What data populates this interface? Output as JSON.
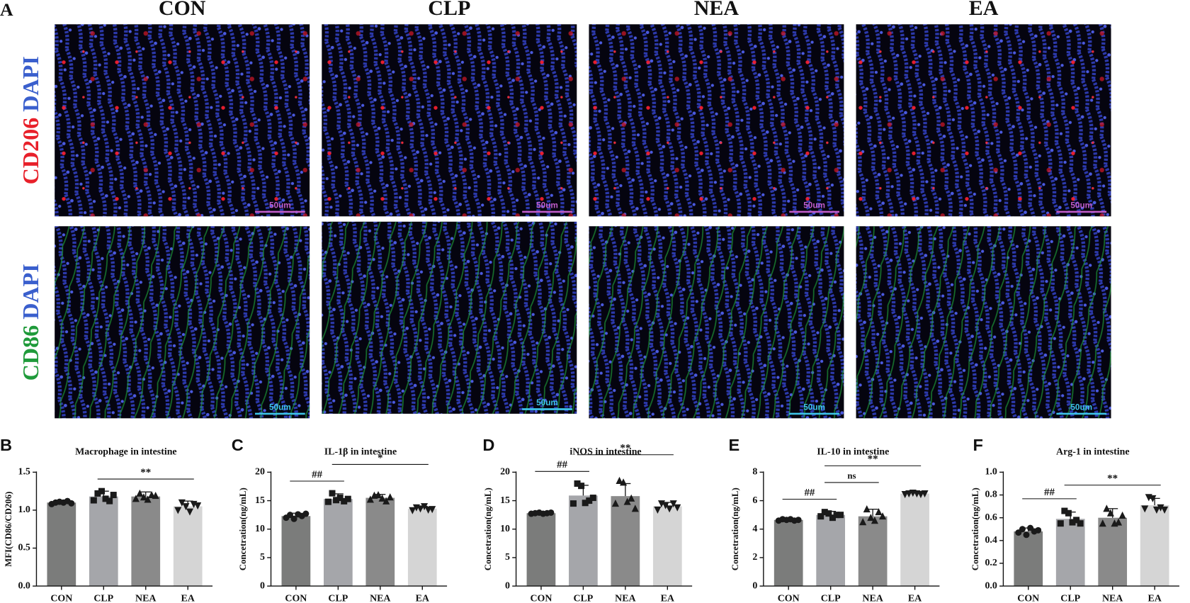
{
  "images": {
    "panel_label": "A",
    "columns": [
      "CON",
      "CLP",
      "NEA",
      "EA"
    ],
    "rows": [
      {
        "stain": "CD206",
        "stain_color": "#e8202a",
        "counterstain": "DAPI",
        "counterstain_color": "#3a5fcd",
        "scale_color": "#c05cc8"
      },
      {
        "stain": "CD86",
        "stain_color": "#1f9a3a",
        "counterstain": "DAPI",
        "counterstain_color": "#3a5fcd",
        "scale_color": "#3ec4e8"
      }
    ],
    "scale_bar": "50um"
  },
  "chart_data": [
    {
      "type": "bar",
      "panel_label": "B",
      "title": "Macrophage in intestine",
      "y_label": "MFI(CD86/CD206)",
      "categories": [
        "CON",
        "CLP",
        "NEA",
        "EA"
      ],
      "colors": [
        "#7b7c7b",
        "#a5a6aa",
        "#8a8a8a",
        "#d5d5d5"
      ],
      "markers": [
        "circle",
        "square",
        "triangle",
        "triangle-down"
      ],
      "values": [
        1.1,
        1.18,
        1.18,
        1.05
      ],
      "errors": [
        0.03,
        0.07,
        0.06,
        0.07
      ],
      "points": [
        [
          1.08,
          1.1,
          1.11,
          1.1,
          1.12,
          1.09
        ],
        [
          1.13,
          1.22,
          1.25,
          1.15,
          1.12,
          1.2
        ],
        [
          1.15,
          1.22,
          1.17,
          1.14,
          1.2,
          1.19
        ],
        [
          1.0,
          1.1,
          1.05,
          0.98,
          1.08,
          1.06
        ]
      ],
      "ylim": [
        0,
        1.5
      ],
      "yticks": [
        {
          "value": 0,
          "label": "0.0"
        },
        {
          "value": 0.5,
          "label": "0.5"
        },
        {
          "value": 1,
          "label": "1.0"
        },
        {
          "value": 1.5,
          "label": "1.5"
        }
      ],
      "annotations": [
        {
          "text": "**",
          "between": [
            "CLP",
            "EA"
          ]
        }
      ]
    },
    {
      "type": "bar",
      "panel_label": "C",
      "title": "IL-1β in intestine",
      "y_label": "Concetration(ng/mL)",
      "categories": [
        "CON",
        "CLP",
        "NEA",
        "EA"
      ],
      "colors": [
        "#7b7c7b",
        "#a5a6aa",
        "#8a8a8a",
        "#d5d5d5"
      ],
      "markers": [
        "circle",
        "square",
        "triangle",
        "triangle-down"
      ],
      "values": [
        12.3,
        15.3,
        15.5,
        13.6
      ],
      "errors": [
        0.5,
        0.9,
        0.6,
        0.4
      ],
      "points": [
        [
          12.0,
          12.5,
          11.8,
          12.6,
          12.3,
          12.7
        ],
        [
          14.8,
          16.3,
          15.1,
          15.5,
          14.9,
          15.3
        ],
        [
          15.2,
          15.9,
          16.0,
          15.4,
          14.9,
          15.6
        ],
        [
          13.3,
          13.8,
          13.6,
          14.0,
          13.4,
          13.5
        ]
      ],
      "ylim": [
        0,
        20
      ],
      "yticks": [
        0,
        5,
        10,
        15,
        20
      ],
      "annotations": [
        {
          "text": "##",
          "between": [
            "CON",
            "CLP"
          ]
        },
        {
          "text": "*",
          "between": [
            "CLP",
            "EA"
          ]
        }
      ]
    },
    {
      "type": "bar",
      "panel_label": "D",
      "title": "iNOS in intestine",
      "y_label": "Concetration(ng/mL)",
      "categories": [
        "CON",
        "CLP",
        "NEA",
        "EA"
      ],
      "colors": [
        "#7b7c7b",
        "#a5a6aa",
        "#8a8a8a",
        "#d5d5d5"
      ],
      "markers": [
        "circle",
        "square",
        "triangle",
        "triangle-down"
      ],
      "values": [
        12.8,
        15.9,
        15.8,
        14.0
      ],
      "errors": [
        0.15,
        1.8,
        2.2,
        0.7
      ],
      "points": [
        [
          12.7,
          12.8,
          12.9,
          12.7,
          12.8,
          12.9
        ],
        [
          14.5,
          18.0,
          17.6,
          14.6,
          15.0,
          15.5
        ],
        [
          14.5,
          18.5,
          18.2,
          14.8,
          15.4,
          13.6
        ],
        [
          13.4,
          14.5,
          14.2,
          13.6,
          14.5,
          13.8
        ]
      ],
      "ylim": [
        0,
        20
      ],
      "yticks": [
        0,
        5,
        10,
        15,
        20
      ],
      "annotations": [
        {
          "text": "##",
          "between": [
            "CON",
            "CLP"
          ]
        },
        {
          "text": "**",
          "between": [
            "CLP",
            "EA"
          ]
        }
      ]
    },
    {
      "type": "bar",
      "panel_label": "E",
      "title": "IL-10 in intestine",
      "y_label": "Concetration(ng/mL)",
      "categories": [
        "CON",
        "CLP",
        "NEA",
        "EA"
      ],
      "colors": [
        "#7b7c7b",
        "#a5a6aa",
        "#8a8a8a",
        "#d5d5d5"
      ],
      "markers": [
        "circle",
        "square",
        "triangle",
        "triangle-down"
      ],
      "values": [
        4.65,
        5.0,
        4.9,
        6.5
      ],
      "errors": [
        0.1,
        0.25,
        0.5,
        0.1
      ],
      "points": [
        [
          4.6,
          4.7,
          4.65,
          4.7,
          4.6,
          4.65
        ],
        [
          4.9,
          5.2,
          5.1,
          4.8,
          5.0,
          5.0
        ],
        [
          4.5,
          5.4,
          4.8,
          4.6,
          5.2,
          4.9
        ],
        [
          6.45,
          6.5,
          6.55,
          6.5,
          6.45,
          6.5
        ]
      ],
      "ylim": [
        0,
        8
      ],
      "yticks": [
        0,
        2,
        4,
        6,
        8
      ],
      "annotations": [
        {
          "text": "##",
          "between": [
            "CON",
            "CLP"
          ]
        },
        {
          "text": "ns",
          "between": [
            "CLP",
            "NEA"
          ]
        },
        {
          "text": "**",
          "between": [
            "CLP",
            "EA"
          ]
        }
      ]
    },
    {
      "type": "bar",
      "panel_label": "F",
      "title": "Arg-1 in intestine",
      "y_label": "Concetration(ng/mL)",
      "categories": [
        "CON",
        "CLP",
        "NEA",
        "EA"
      ],
      "colors": [
        "#7b7c7b",
        "#a5a6aa",
        "#8a8a8a",
        "#d5d5d5"
      ],
      "markers": [
        "circle",
        "square",
        "triangle",
        "triangle-down"
      ],
      "values": [
        0.48,
        0.59,
        0.6,
        0.71
      ],
      "errors": [
        0.03,
        0.06,
        0.08,
        0.06
      ],
      "points": [
        [
          0.47,
          0.5,
          0.45,
          0.51,
          0.48,
          0.49
        ],
        [
          0.55,
          0.66,
          0.64,
          0.56,
          0.58,
          0.55
        ],
        [
          0.55,
          0.68,
          0.64,
          0.55,
          0.56,
          0.62
        ],
        [
          0.68,
          0.78,
          0.77,
          0.67,
          0.69,
          0.67
        ]
      ],
      "ylim": [
        0,
        1
      ],
      "yticks": [
        {
          "value": 0,
          "label": "0.0"
        },
        {
          "value": 0.2,
          "label": "0.2"
        },
        {
          "value": 0.4,
          "label": "0.4"
        },
        {
          "value": 0.6,
          "label": "0.6"
        },
        {
          "value": 0.8,
          "label": "0.8"
        },
        {
          "value": 1,
          "label": "1.0"
        }
      ],
      "annotations": [
        {
          "text": "##",
          "between": [
            "CON",
            "CLP"
          ]
        },
        {
          "text": "**",
          "between": [
            "CLP",
            "EA"
          ]
        }
      ]
    }
  ]
}
